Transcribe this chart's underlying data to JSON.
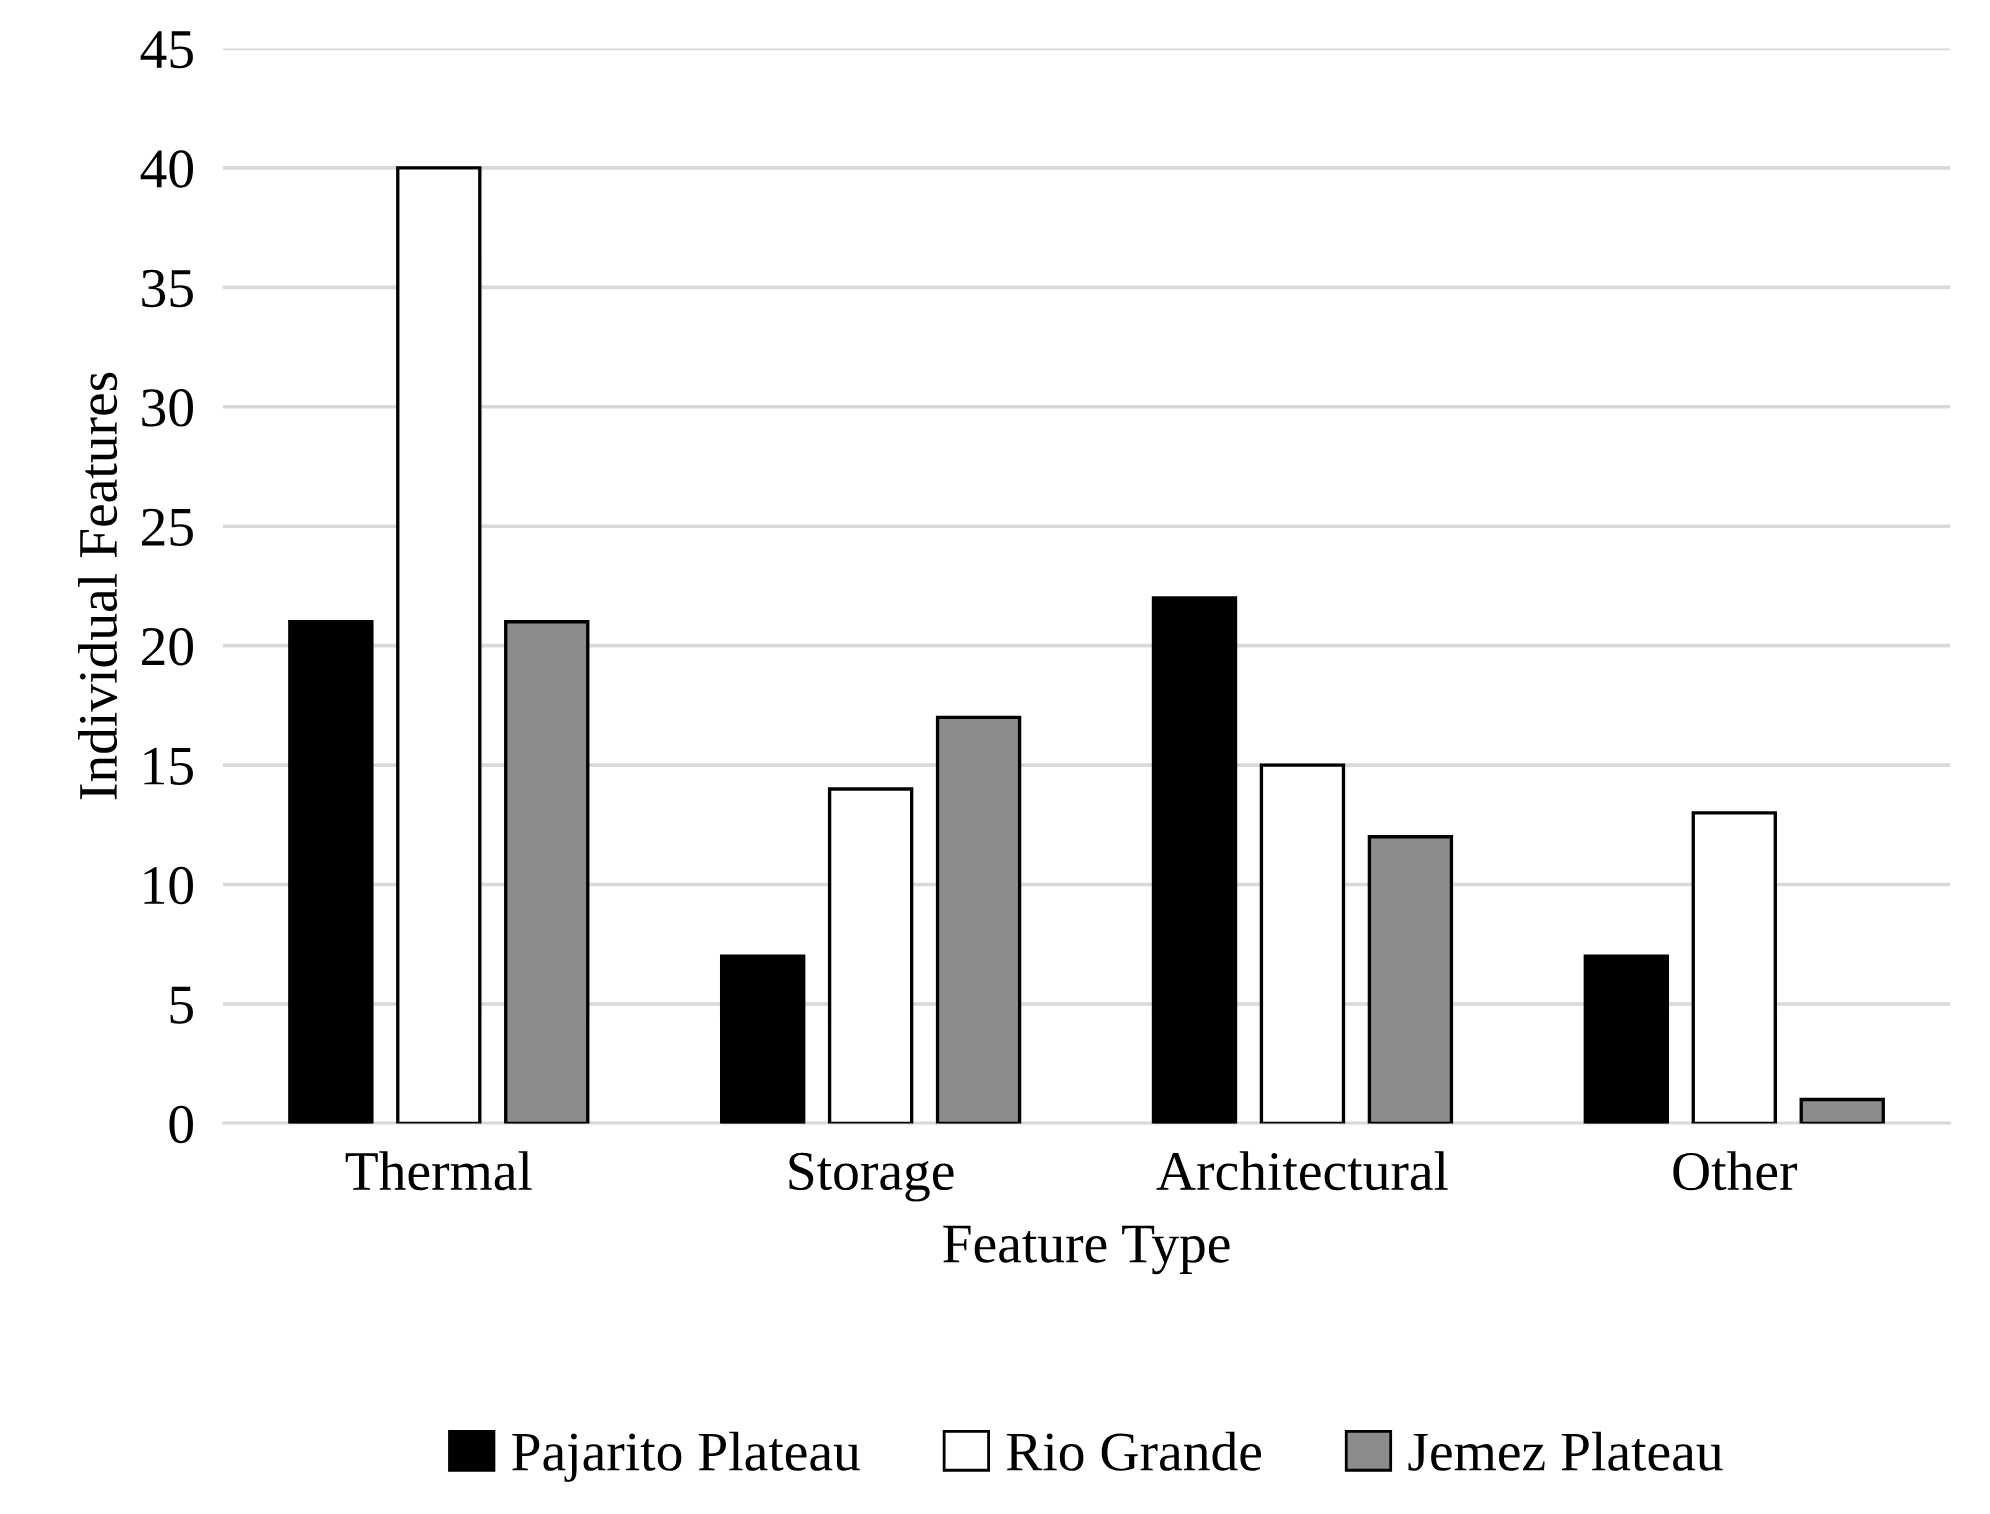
{
  "chart_data": {
    "type": "bar",
    "xlabel": "Feature Type",
    "ylabel": "Individual Features",
    "categories": [
      "Thermal",
      "Storage",
      "Architectural",
      "Other"
    ],
    "series": [
      {
        "name": "Pajarito Plateau",
        "color": "#000000",
        "values": [
          21,
          7,
          22,
          7
        ]
      },
      {
        "name": "Rio Grande",
        "color": "#ffffff",
        "values": [
          40,
          14,
          15,
          13
        ]
      },
      {
        "name": "Jemez Plateau",
        "color": "#8c8c8c",
        "values": [
          21,
          17,
          12,
          1
        ]
      }
    ],
    "ylim": [
      0,
      45
    ],
    "yticks": [
      0,
      5,
      10,
      15,
      20,
      25,
      30,
      35,
      40,
      45
    ],
    "grid": "y",
    "legend": "bottom"
  }
}
